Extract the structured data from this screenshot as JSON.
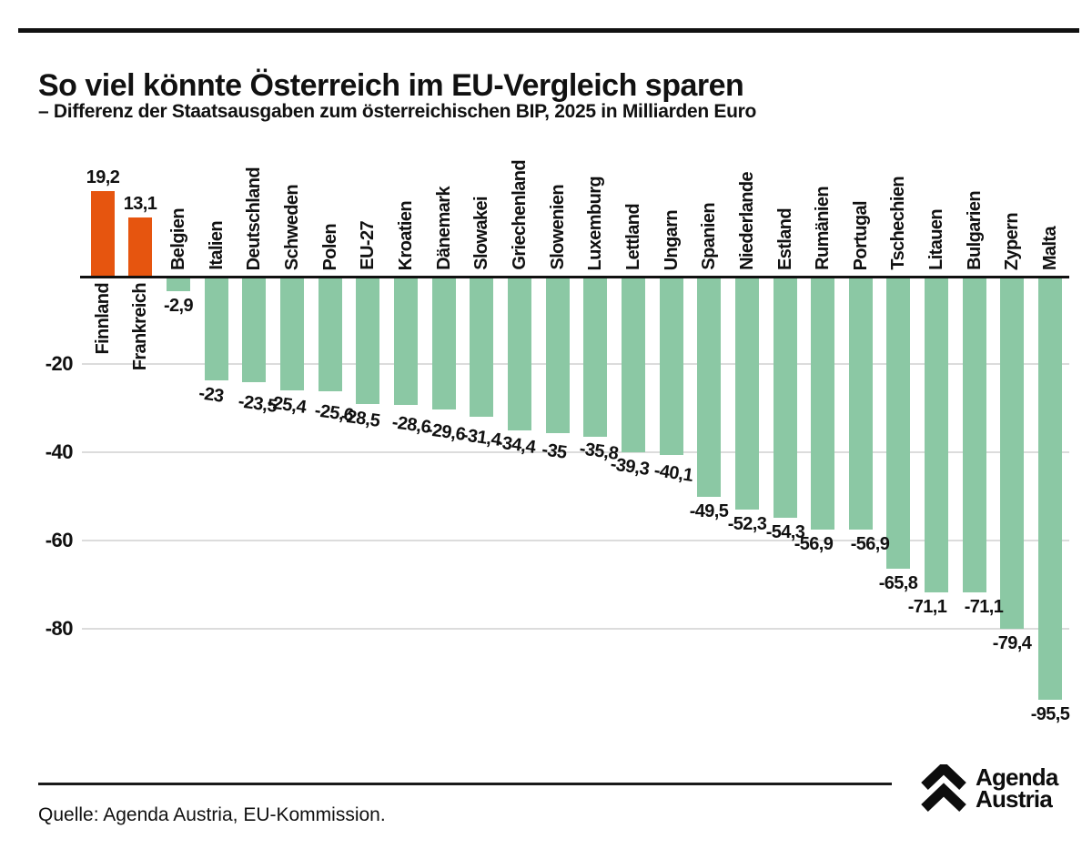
{
  "title": "So viel könnte Österreich im EU-Vergleich sparen",
  "subtitle": "– Differenz der Staatsausgaben zum österreichischen BIP, 2025 in Milliarden Euro",
  "source": "Quelle: Agenda Austria, EU-Kommission.",
  "logo": {
    "icon": "double-chevron-up-icon",
    "line1": "Agenda",
    "line2": "Austria"
  },
  "colors": {
    "positive_bar": "#e6550f",
    "negative_bar": "#8bc8a4",
    "gridline": "#dcdcdc",
    "baseline": "#111111",
    "text": "#111111"
  },
  "chart_data": {
    "type": "bar",
    "title": "So viel könnte Österreich im EU-Vergleich sparen",
    "subtitle": "– Differenz der Staatsausgaben zum österreichischen BIP, 2025 in Milliarden Euro",
    "xlabel": "",
    "ylabel": "",
    "ylim": [
      -100,
      25
    ],
    "yticks": [
      -20,
      -40,
      -60,
      -80
    ],
    "grid": true,
    "legend": "none",
    "categories": [
      "Finnland",
      "Frankreich",
      "Belgien",
      "Italien",
      "Deutschland",
      "Schweden",
      "Polen",
      "EU-27",
      "Kroatien",
      "Dänemark",
      "Slowakei",
      "Griechenland",
      "Slowenien",
      "Luxemburg",
      "Lettland",
      "Ungarn",
      "Spanien",
      "Niederlande",
      "Estland",
      "Rumänien",
      "Portugal",
      "Tschechien",
      "Litauen",
      "Bulgarien",
      "Zypern",
      "Malta"
    ],
    "values": [
      19.2,
      13.1,
      -2.9,
      -23,
      -23.5,
      -25.4,
      -25.6,
      -28.5,
      -28.6,
      -29.6,
      -31.4,
      -34.4,
      -35,
      -35.8,
      -39.3,
      -40.1,
      -49.5,
      -52.3,
      -54.3,
      -56.9,
      -56.9,
      -65.8,
      -71.1,
      -71.1,
      -79.4,
      -95.5
    ],
    "value_labels": [
      "19,2",
      "13,1",
      "-2,9",
      "-23",
      "-23,5",
      "-25,4",
      "-25,6",
      "-28,5",
      "-28,6",
      "-29,6",
      "-31,4",
      "-34,4",
      "-35",
      "-35,8",
      "-39,3",
      "-40,1",
      "-49,5",
      "-52,3",
      "-54,3",
      "-56,9",
      "-56,9",
      "-65,8",
      "-71,1",
      "-71,1",
      "-79,4",
      "-95,5"
    ]
  }
}
